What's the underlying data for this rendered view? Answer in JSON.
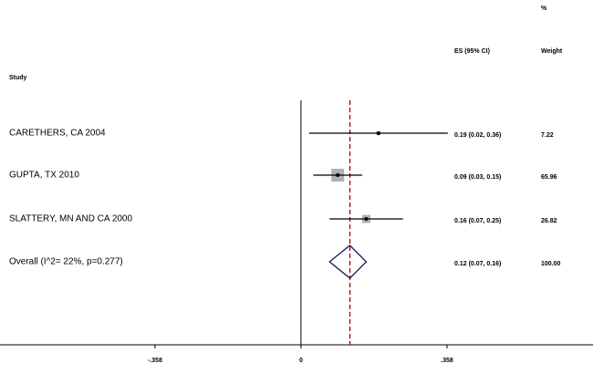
{
  "chart_data": {
    "type": "forest",
    "headers": {
      "percent": "%",
      "es": "ES (95% CI)",
      "weight": "Weight",
      "study": "Study"
    },
    "categories": [
      "CARETHERS, CA 2004",
      "GUPTA, TX 2010",
      "SLATTERY, MN AND CA 2000",
      "Overall (I^2= 22%, p=0.277)"
    ],
    "es": [
      0.19,
      0.09,
      0.16,
      0.12
    ],
    "lo": [
      0.02,
      0.03,
      0.07,
      0.07
    ],
    "hi": [
      0.36,
      0.15,
      0.25,
      0.16
    ],
    "es_labels": [
      "0.19 (0.02, 0.36)",
      "0.09 (0.03, 0.15)",
      "0.16 (0.07, 0.25)",
      "0.12 (0.07, 0.16)"
    ],
    "weights": [
      7.22,
      65.96,
      26.82,
      100
    ],
    "weight_labels": [
      "7.22",
      "65.96",
      "26.82",
      "100.00"
    ],
    "xlim": [
      -0.738,
      0.716
    ],
    "xticks": [
      {
        "value": -0.358,
        "label": "-.358"
      },
      0,
      {
        "value": 0.358,
        "label": ".358"
      }
    ],
    "box_color": "#b0b0b0",
    "diamond_color": "#1a1a5e",
    "reference_color": "#a00000"
  }
}
